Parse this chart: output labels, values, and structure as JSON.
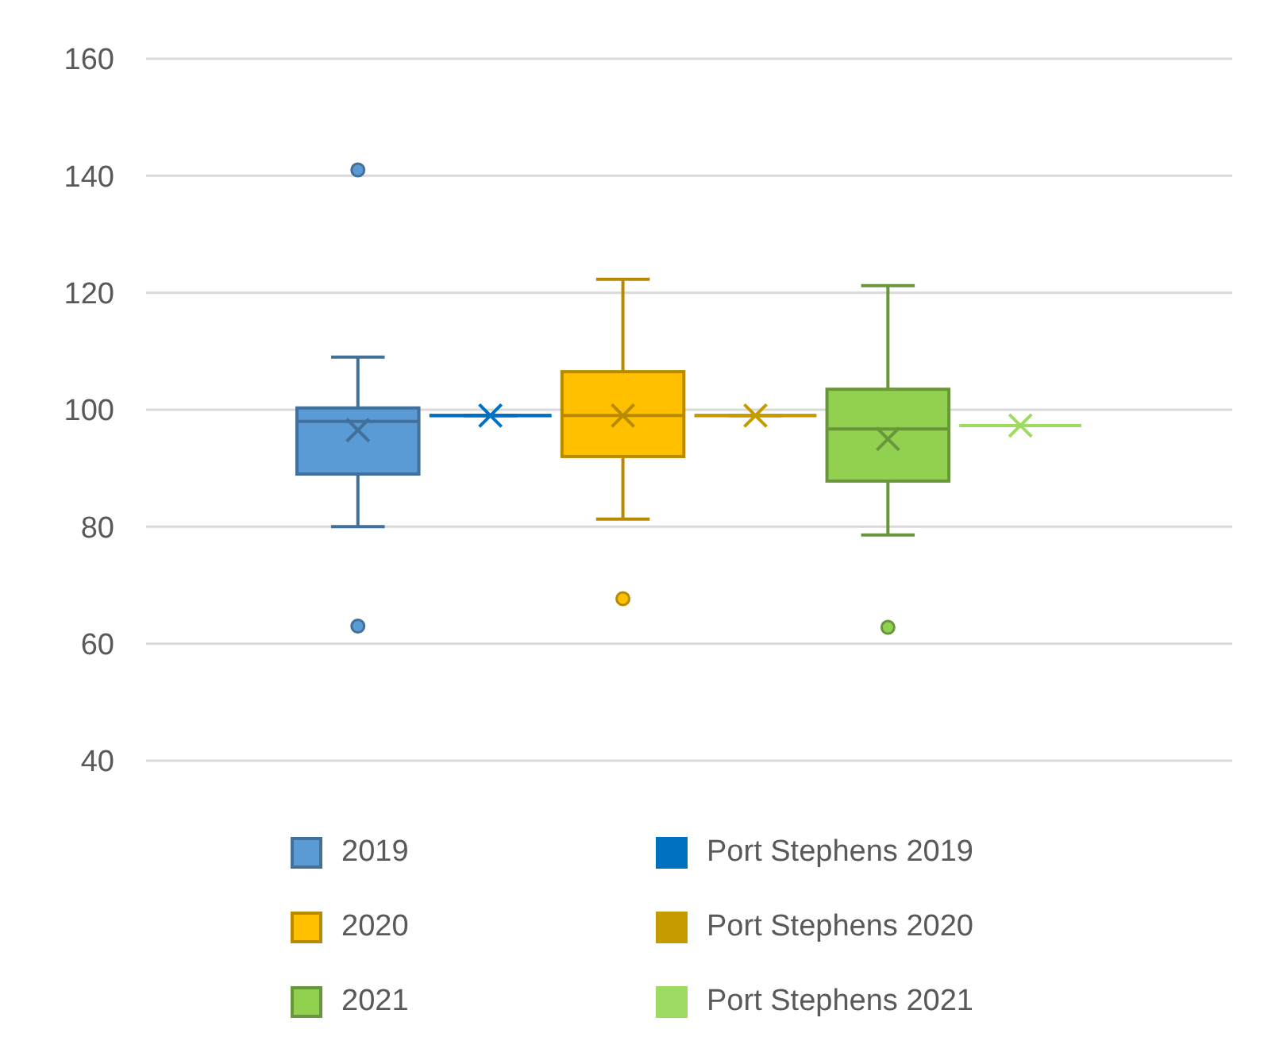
{
  "chart_data": {
    "type": "box",
    "categories": [
      null
    ],
    "ylim": [
      40,
      160
    ],
    "yticks": [
      40,
      60,
      80,
      100,
      120,
      140,
      160
    ],
    "grid": "y",
    "legend": "bottom",
    "tick_labels": "y",
    "series": [
      {
        "name": "2019",
        "color": "#5b9bd5",
        "boxes": [
          {
            "low": 80,
            "q1": 89,
            "median": 98,
            "q3": 100.3,
            "high": 109,
            "mean": 96.5,
            "outliers": [
              141,
              63
            ]
          }
        ]
      },
      {
        "name": "Port Stephens 2019",
        "color": "#0070c0",
        "boxes": [
          {
            "low": 99,
            "q1": 99,
            "median": 99,
            "q3": 99,
            "high": 99,
            "mean": 99
          }
        ]
      },
      {
        "name": "2020",
        "color": "#ffc000",
        "boxes": [
          {
            "low": 81.3,
            "q1": 92,
            "median": 99,
            "q3": 106.5,
            "high": 122.3,
            "mean": 99,
            "outliers": [
              67.7
            ]
          }
        ]
      },
      {
        "name": "Port Stephens 2020",
        "color": "#c59b00",
        "boxes": [
          {
            "low": 99,
            "q1": 99,
            "median": 99,
            "q3": 99,
            "high": 99,
            "mean": 99
          }
        ]
      },
      {
        "name": "2021",
        "color": "#92d050",
        "boxes": [
          {
            "low": 78.6,
            "q1": 87.8,
            "median": 96.7,
            "q3": 103.5,
            "high": 121.2,
            "mean": 95,
            "outliers": [
              62.8
            ]
          }
        ]
      },
      {
        "name": "Port Stephens 2021",
        "color": "#9fdb62",
        "boxes": [
          {
            "low": 97.3,
            "q1": 97.3,
            "median": 97.3,
            "q3": 97.3,
            "high": 97.3,
            "mean": 97.3
          }
        ]
      }
    ]
  }
}
